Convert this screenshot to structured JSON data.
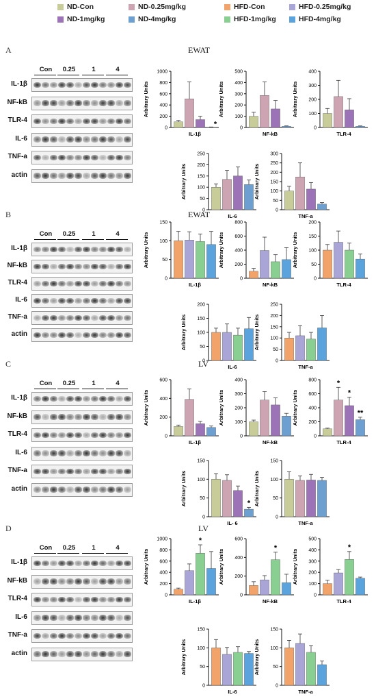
{
  "legend": {
    "items": [
      {
        "label": "ND-Con",
        "color": "#c8cc99"
      },
      {
        "label": "ND-0.25mg/kg",
        "color": "#cda4b1"
      },
      {
        "label": "HFD-Con",
        "color": "#f2a36a"
      },
      {
        "label": "HFD-0.25mg/kg",
        "color": "#a9a5d6"
      },
      {
        "label": "ND-1mg/kg",
        "color": "#9d73b8"
      },
      {
        "label": "ND-4mg/kg",
        "color": "#6d9fd1"
      },
      {
        "label": "HFD-1mg/kg",
        "color": "#88cf91"
      },
      {
        "label": "HFD-4mg/kg",
        "color": "#5aa3dc"
      }
    ]
  },
  "panels": [
    {
      "letter": "A",
      "title": "EWAT",
      "doses": [
        "Con",
        "0.25",
        "1",
        "4"
      ],
      "blot_labels": [
        "IL-1β",
        "NF-kB",
        "TLR-4",
        "IL-6",
        "TNF-a",
        "actin"
      ],
      "y_axis_label": "Arbitrary Units",
      "colors": [
        "#c8cc99",
        "#cda4b1",
        "#9d73b8",
        "#6d9fd1"
      ]
    },
    {
      "letter": "B",
      "title": "EWAT",
      "doses": [
        "Con",
        "0.25",
        "1",
        "4"
      ],
      "blot_labels": [
        "IL-1β",
        "NF-kB",
        "TLR-4",
        "IL-6",
        "TNF-a",
        "actin"
      ],
      "y_axis_label": "Arbitrary Units",
      "colors": [
        "#f2a36a",
        "#a9a5d6",
        "#88cf91",
        "#5aa3dc"
      ]
    },
    {
      "letter": "C",
      "title": "LV",
      "doses": [
        "Con",
        "0.25",
        "1",
        "4"
      ],
      "blot_labels": [
        "IL-1β",
        "NF-kB",
        "TLR-4",
        "IL-6",
        "TNF-a",
        "actin"
      ],
      "y_axis_label": "Arbitrary Units",
      "colors": [
        "#c8cc99",
        "#cda4b1",
        "#9d73b8",
        "#6d9fd1"
      ]
    },
    {
      "letter": "D",
      "title": "LV",
      "doses": [
        "Con",
        "0.25",
        "1",
        "4"
      ],
      "blot_labels": [
        "IL-1β",
        "NF-kB",
        "TLR-4",
        "IL-6",
        "TNF-a",
        "actin"
      ],
      "y_axis_label": "Arbitrary Units",
      "colors": [
        "#f2a36a",
        "#a9a5d6",
        "#88cf91",
        "#5aa3dc"
      ]
    }
  ],
  "chart_data": [
    {
      "panel": "A",
      "type": "bar",
      "xlabel": "IL-1β",
      "ylim": [
        0,
        1000
      ],
      "yticks": [
        0,
        200,
        400,
        600,
        800,
        1000
      ],
      "values": [
        100,
        510,
        140,
        6
      ],
      "errors": [
        25,
        300,
        60,
        3
      ],
      "marks": [
        "",
        "",
        "",
        "*"
      ]
    },
    {
      "panel": "A",
      "type": "bar",
      "xlabel": "NF-kB",
      "ylim": [
        0,
        500
      ],
      "yticks": [
        0,
        100,
        200,
        300,
        400,
        500
      ],
      "values": [
        100,
        285,
        165,
        10
      ],
      "errors": [
        35,
        120,
        75,
        4
      ],
      "marks": [
        "",
        "",
        "",
        ""
      ]
    },
    {
      "panel": "A",
      "type": "bar",
      "xlabel": "TLR-4",
      "ylim": [
        0,
        400
      ],
      "yticks": [
        0,
        100,
        200,
        300,
        400
      ],
      "values": [
        100,
        220,
        125,
        8
      ],
      "errors": [
        35,
        115,
        80,
        3
      ],
      "marks": [
        "",
        "",
        "",
        ""
      ]
    },
    {
      "panel": "A",
      "type": "bar",
      "xlabel": "IL-6",
      "ylim": [
        0,
        250
      ],
      "yticks": [
        0,
        50,
        100,
        150,
        200,
        250
      ],
      "values": [
        100,
        135,
        150,
        112
      ],
      "errors": [
        15,
        40,
        40,
        20
      ],
      "marks": [
        "",
        "",
        "",
        ""
      ]
    },
    {
      "panel": "A",
      "type": "bar",
      "xlabel": "TNF-a",
      "ylim": [
        0,
        300
      ],
      "yticks": [
        0,
        50,
        100,
        150,
        200,
        250,
        300
      ],
      "values": [
        100,
        175,
        110,
        30
      ],
      "errors": [
        25,
        75,
        35,
        8
      ],
      "marks": [
        "",
        "",
        "",
        ""
      ]
    },
    {
      "panel": "B",
      "type": "bar",
      "xlabel": "IL-1β",
      "ylim": [
        0,
        150
      ],
      "yticks": [
        0,
        50,
        100,
        150
      ],
      "values": [
        100,
        102,
        98,
        90
      ],
      "errors": [
        25,
        22,
        20,
        35
      ],
      "marks": [
        "",
        "",
        "",
        ""
      ]
    },
    {
      "panel": "B",
      "type": "bar",
      "xlabel": "NF-kB",
      "ylim": [
        0,
        800
      ],
      "yticks": [
        0,
        200,
        400,
        600,
        800
      ],
      "values": [
        100,
        395,
        235,
        265
      ],
      "errors": [
        40,
        190,
        100,
        170
      ],
      "marks": [
        "",
        "",
        "",
        ""
      ]
    },
    {
      "panel": "B",
      "type": "bar",
      "xlabel": "TLR-4",
      "ylim": [
        0,
        200
      ],
      "yticks": [
        0,
        50,
        100,
        150,
        200
      ],
      "values": [
        100,
        128,
        100,
        68
      ],
      "errors": [
        20,
        40,
        25,
        18
      ],
      "marks": [
        "",
        "",
        "",
        ""
      ]
    },
    {
      "panel": "B",
      "type": "bar",
      "xlabel": "IL-6",
      "ylim": [
        0,
        200
      ],
      "yticks": [
        0,
        50,
        100,
        150,
        200
      ],
      "values": [
        100,
        100,
        90,
        113
      ],
      "errors": [
        15,
        30,
        25,
        40
      ],
      "marks": [
        "",
        "",
        "",
        ""
      ]
    },
    {
      "panel": "B",
      "type": "bar",
      "xlabel": "TNF-a",
      "ylim": [
        0,
        250
      ],
      "yticks": [
        0,
        50,
        100,
        150,
        200,
        250
      ],
      "values": [
        100,
        110,
        95,
        145
      ],
      "errors": [
        25,
        45,
        30,
        55
      ],
      "marks": [
        "",
        "",
        "",
        ""
      ]
    },
    {
      "panel": "C",
      "type": "bar",
      "xlabel": "IL-1β",
      "ylim": [
        0,
        600
      ],
      "yticks": [
        0,
        200,
        400,
        600
      ],
      "values": [
        100,
        390,
        130,
        90
      ],
      "errors": [
        15,
        110,
        25,
        15
      ],
      "marks": [
        "",
        "",
        "",
        ""
      ]
    },
    {
      "panel": "C",
      "type": "bar",
      "xlabel": "NF-kB",
      "ylim": [
        0,
        400
      ],
      "yticks": [
        0,
        100,
        200,
        300,
        400
      ],
      "values": [
        100,
        255,
        220,
        140
      ],
      "errors": [
        12,
        60,
        50,
        20
      ],
      "marks": [
        "",
        "",
        "",
        ""
      ]
    },
    {
      "panel": "C",
      "type": "bar",
      "xlabel": "TLR-4",
      "ylim": [
        0,
        800
      ],
      "yticks": [
        0,
        200,
        400,
        600,
        800
      ],
      "values": [
        100,
        510,
        430,
        230
      ],
      "errors": [
        10,
        180,
        120,
        35
      ],
      "marks": [
        "",
        "*",
        "*",
        "**"
      ]
    },
    {
      "panel": "C",
      "type": "bar",
      "xlabel": "IL- 6",
      "ylim": [
        0,
        150
      ],
      "yticks": [
        0,
        50,
        100,
        150
      ],
      "values": [
        100,
        97,
        70,
        20
      ],
      "errors": [
        15,
        15,
        12,
        5
      ],
      "marks": [
        "",
        "",
        "",
        "*"
      ]
    },
    {
      "panel": "C",
      "type": "bar",
      "xlabel": "TNF-a",
      "ylim": [
        0,
        150
      ],
      "yticks": [
        0,
        50,
        100,
        150
      ],
      "values": [
        100,
        97,
        98,
        97
      ],
      "errors": [
        20,
        12,
        15,
        8
      ],
      "marks": [
        "",
        "",
        "",
        ""
      ]
    },
    {
      "panel": "D",
      "type": "bar",
      "xlabel": "IL-1β",
      "ylim": [
        0,
        1000
      ],
      "yticks": [
        0,
        200,
        400,
        600,
        800,
        1000
      ],
      "values": [
        100,
        430,
        740,
        470
      ],
      "errors": [
        20,
        120,
        150,
        300
      ],
      "marks": [
        "",
        "",
        "*",
        ""
      ]
    },
    {
      "panel": "D",
      "type": "bar",
      "xlabel": "NF-kB",
      "ylim": [
        0,
        600
      ],
      "yticks": [
        0,
        200,
        400,
        600
      ],
      "values": [
        100,
        160,
        375,
        130
      ],
      "errors": [
        40,
        45,
        80,
        90
      ],
      "marks": [
        "",
        "",
        "*",
        ""
      ]
    },
    {
      "panel": "D",
      "type": "bar",
      "xlabel": "TLR-4",
      "ylim": [
        0,
        500
      ],
      "yticks": [
        0,
        100,
        200,
        300,
        400,
        500
      ],
      "values": [
        100,
        195,
        315,
        148
      ],
      "errors": [
        30,
        30,
        70,
        10
      ],
      "marks": [
        "",
        "",
        "*",
        ""
      ]
    },
    {
      "panel": "D",
      "type": "bar",
      "xlabel": "IL-6",
      "ylim": [
        0,
        150
      ],
      "yticks": [
        0,
        50,
        100,
        150
      ],
      "values": [
        100,
        83,
        88,
        85
      ],
      "errors": [
        22,
        18,
        15,
        5
      ],
      "marks": [
        "",
        "",
        "",
        ""
      ]
    },
    {
      "panel": "D",
      "type": "bar",
      "xlabel": "TNF-a",
      "ylim": [
        0,
        150
      ],
      "yticks": [
        0,
        50,
        100,
        150
      ],
      "values": [
        100,
        112,
        88,
        55
      ],
      "errors": [
        20,
        25,
        18,
        10
      ],
      "marks": [
        "",
        "",
        "",
        ""
      ]
    }
  ]
}
